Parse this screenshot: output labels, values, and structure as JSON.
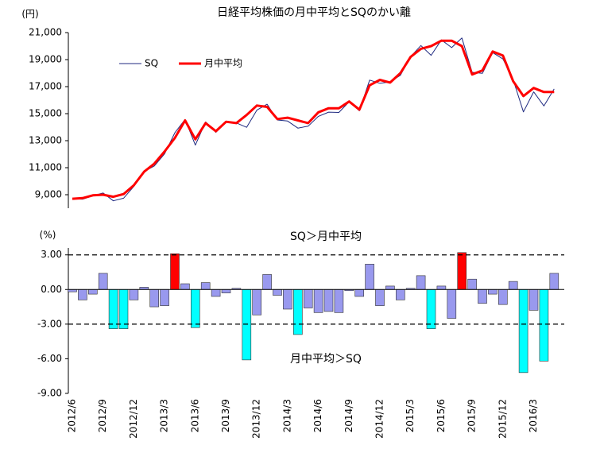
{
  "chart_data": [
    {
      "type": "line",
      "title": "日経平均株価の月中平均とSQのかい離",
      "y_label": "(円)",
      "legend": "upper-left",
      "series": [
        {
          "name": "SQ",
          "color": "#1f2a80",
          "values": [
            8680,
            8670,
            8910,
            9130,
            8550,
            8740,
            9610,
            10720,
            11130,
            12030,
            13580,
            14570,
            12670,
            14390,
            13620,
            14360,
            14310,
            13990,
            15260,
            15700,
            14530,
            14450,
            13930,
            14070,
            14800,
            15110,
            15090,
            15880,
            15210,
            17480,
            17250,
            17350,
            17840,
            19220,
            20040,
            19320,
            20460,
            19890,
            20600,
            18060,
            17980,
            19520,
            19050,
            17520,
            15130,
            16610,
            15570,
            16830
          ]
        },
        {
          "name": "月中平均",
          "color": "#ff0000",
          "values": [
            8700,
            8750,
            8950,
            9000,
            8850,
            9050,
            9700,
            10700,
            11300,
            12200,
            13200,
            14500,
            13100,
            14300,
            13700,
            14400,
            14300,
            14900,
            15600,
            15500,
            14600,
            14700,
            14500,
            14300,
            15100,
            15400,
            15400,
            15900,
            15300,
            17100,
            17500,
            17300,
            18000,
            19200,
            19800,
            20000,
            20400,
            20400,
            20000,
            17900,
            18200,
            19600,
            19300,
            17400,
            16300,
            16900,
            16600,
            16600
          ]
        }
      ],
      "ylim": [
        8000,
        21000
      ],
      "yticks": [
        {
          "value": 9000,
          "label": "9,000"
        },
        {
          "value": 11000,
          "label": "11,000"
        },
        {
          "value": 13000,
          "label": "13,000"
        },
        {
          "value": 15000,
          "label": "15,000"
        },
        {
          "value": 17000,
          "label": "17,000"
        },
        {
          "value": 19000,
          "label": "19,000"
        },
        {
          "value": 21000,
          "label": "21,000"
        }
      ]
    },
    {
      "type": "bar",
      "y_label": "(%)",
      "categories": [
        "2012/6",
        null,
        null,
        "2012/9",
        null,
        null,
        "2012/12",
        null,
        null,
        "2013/3",
        null,
        null,
        "2013/6",
        null,
        null,
        "2013/9",
        null,
        null,
        "2013/12",
        null,
        null,
        "2014/3",
        null,
        null,
        "2014/6",
        null,
        null,
        "2014/9",
        null,
        null,
        "2014/12",
        null,
        null,
        "2015/3",
        null,
        null,
        "2015/6",
        null,
        null,
        "2015/9",
        null,
        null,
        "2015/12",
        null,
        null,
        "2016/3",
        null,
        null
      ],
      "values": [
        -0.2,
        -0.9,
        -0.4,
        1.4,
        -3.4,
        -3.4,
        -0.9,
        0.2,
        -1.5,
        -1.4,
        3.1,
        0.5,
        -3.3,
        0.6,
        -0.6,
        -0.3,
        0.1,
        -6.1,
        -2.2,
        1.3,
        -0.5,
        -1.7,
        -3.9,
        -1.6,
        -2.0,
        -1.9,
        -2.0,
        -0.1,
        -0.6,
        2.2,
        -1.4,
        0.3,
        -0.9,
        0.1,
        1.2,
        -3.4,
        0.3,
        -2.5,
        3.2,
        0.9,
        -1.2,
        -0.4,
        -1.3,
        0.7,
        -7.2,
        -1.8,
        -6.2,
        1.4
      ],
      "color": "#9999ee",
      "above_color": "#ff0000",
      "below_color": "#00ffff",
      "ref_lines": [
        3,
        -3
      ],
      "annotations": [
        "SQ＞月中平均",
        "月中平均＞SQ"
      ],
      "ylim": [
        -9,
        3.6
      ],
      "yticks": [
        {
          "value": 3,
          "label": "3.00"
        },
        {
          "value": 0,
          "label": "0.00"
        },
        {
          "value": -3,
          "label": "-3.00"
        },
        {
          "value": -6,
          "label": "-6.00"
        },
        {
          "value": -9,
          "label": "-9.00"
        }
      ]
    }
  ]
}
